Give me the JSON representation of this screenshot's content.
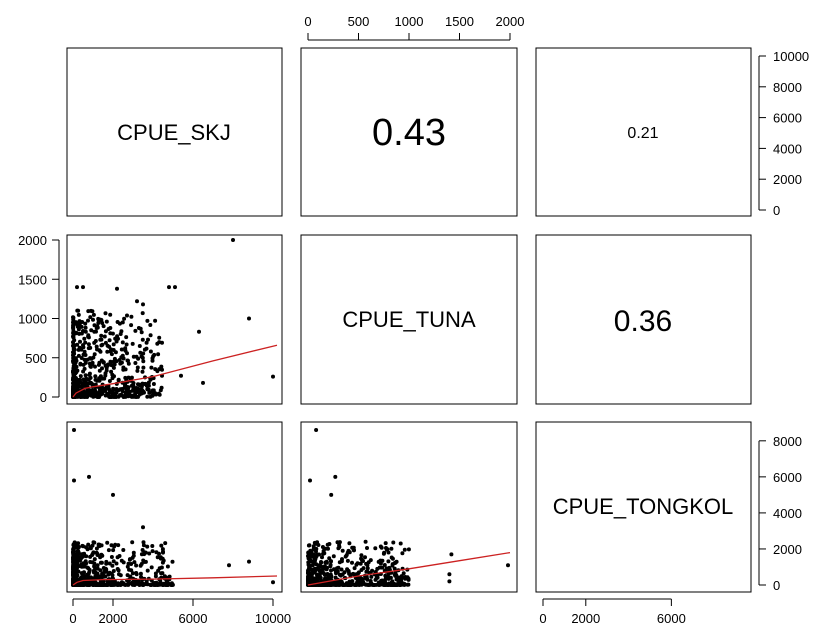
{
  "chart_data": {
    "type": "scatter",
    "title": "",
    "variables": [
      "CPUE_SKJ",
      "CPUE_TUNA",
      "CPUE_TONGKOL"
    ],
    "correlations": {
      "SKJ_TUNA": "0.43",
      "SKJ_TONGKOL": "0.21",
      "TUNA_TONGKOL": "0.36"
    },
    "axes": {
      "skj": {
        "range": [
          0,
          10000
        ],
        "ticks": [
          0,
          2000,
          6000,
          10000
        ],
        "tick_labels": [
          "0",
          "2000",
          "6000",
          "10000"
        ]
      },
      "tuna": {
        "range": [
          0,
          2000
        ],
        "ticks": [
          0,
          500,
          1000,
          1500,
          2000
        ],
        "tick_labels": [
          "0",
          "500",
          "1000",
          "1500",
          "2000"
        ]
      },
      "tongkol_top": {
        "range": [
          0,
          10000
        ],
        "ticks": [
          0,
          2000,
          4000,
          6000,
          8000,
          10000
        ],
        "tick_labels": [
          "0",
          "2000",
          "4000",
          "6000",
          "8000",
          "10000"
        ]
      },
      "tongkol": {
        "range": [
          0,
          8600
        ],
        "ticks": [
          0,
          2000,
          4000,
          6000,
          8000
        ],
        "tick_labels": [
          "0",
          "2000",
          "4000",
          "6000",
          "8000"
        ]
      },
      "tongkol_bottom": {
        "range": [
          0,
          8600
        ],
        "ticks": [
          0,
          2000,
          6000
        ],
        "tick_labels": [
          "0",
          "2000",
          "6000"
        ]
      }
    },
    "smoother_color": "#cc2222",
    "point_color": "#000000",
    "points": {
      "skj_vs_tuna_notable": [
        {
          "x": 8000,
          "y": 2000
        },
        {
          "x": 200,
          "y": 1400
        },
        {
          "x": 500,
          "y": 1400
        },
        {
          "x": 2200,
          "y": 1380
        },
        {
          "x": 4800,
          "y": 1400
        },
        {
          "x": 5100,
          "y": 1400
        },
        {
          "x": 3200,
          "y": 1220
        },
        {
          "x": 3500,
          "y": 1180
        },
        {
          "x": 8800,
          "y": 1000
        },
        {
          "x": 6300,
          "y": 830
        },
        {
          "x": 10000,
          "y": 260
        },
        {
          "x": 6500,
          "y": 180
        },
        {
          "x": 5400,
          "y": 270
        }
      ],
      "skj_vs_tongkol_notable": [
        {
          "x": 50,
          "y": 8600
        },
        {
          "x": 800,
          "y": 6000
        },
        {
          "x": 50,
          "y": 5800
        },
        {
          "x": 2000,
          "y": 5000
        },
        {
          "x": 3500,
          "y": 3200
        },
        {
          "x": 8800,
          "y": 1300
        },
        {
          "x": 7800,
          "y": 1100
        },
        {
          "x": 10000,
          "y": 150
        }
      ],
      "tuna_vs_tongkol_notable": [
        {
          "x": 80,
          "y": 8600
        },
        {
          "x": 270,
          "y": 6000
        },
        {
          "x": 20,
          "y": 5800
        },
        {
          "x": 230,
          "y": 5000
        },
        {
          "x": 1420,
          "y": 1700
        },
        {
          "x": 1980,
          "y": 1100
        },
        {
          "x": 1400,
          "y": 600
        },
        {
          "x": 1400,
          "y": 200
        }
      ]
    },
    "smoothers": {
      "skj_vs_tuna": [
        [
          0,
          0
        ],
        [
          150,
          50
        ],
        [
          600,
          110
        ],
        [
          1000,
          130
        ],
        [
          2000,
          170
        ],
        [
          4000,
          260
        ],
        [
          7000,
          460
        ],
        [
          10200,
          660
        ]
      ],
      "skj_vs_tongkol": [
        [
          0,
          0
        ],
        [
          200,
          150
        ],
        [
          500,
          250
        ],
        [
          1500,
          300
        ],
        [
          4000,
          330
        ],
        [
          7000,
          400
        ],
        [
          10200,
          500
        ]
      ],
      "tuna_vs_tongkol": [
        [
          0,
          0
        ],
        [
          200,
          200
        ],
        [
          500,
          500
        ],
        [
          1000,
          900
        ],
        [
          1500,
          1350
        ],
        [
          2000,
          1800
        ]
      ]
    }
  }
}
